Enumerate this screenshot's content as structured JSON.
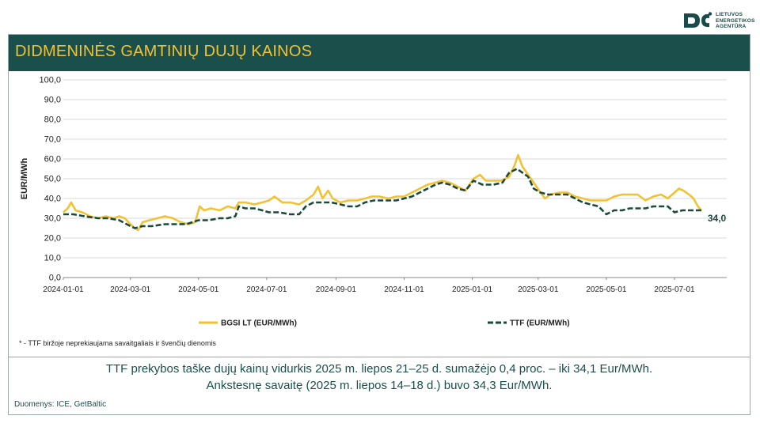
{
  "logo": {
    "line1": "LIETUVOS",
    "line2": "ENERGETIKOS",
    "line3": "AGENTŪRA"
  },
  "title": "DIDMENINĖS GAMTINIŲ DUJŲ KAINOS",
  "footnote": "* - TTF biržoje neprekiaujama savaitgaliais ir švenčių dienomis",
  "summary_line1": "TTF prekybos taške dujų kainų vidurkis 2025 m. liepos 21–25 d. sumažėjo 0,4 proc. – iki 34,1 Eur/MWh.",
  "summary_line2": "Ankstesnę savaitę (2025 m. liepos 14–18 d.) buvo 34,3 Eur/MWh.",
  "source": "Duomenys: ICE, GetBaltic",
  "colors": {
    "title_bg": "#1b4f4c",
    "title_text": "#f2c233",
    "bgsi": "#f2c233",
    "ttf": "#1b4a3c"
  },
  "chart_data": {
    "type": "line",
    "ylabel": "EUR/MWh",
    "ylim": [
      0,
      100
    ],
    "yticks": [
      "0,0",
      "10,0",
      "20,0",
      "30,0",
      "40,0",
      "50,0",
      "60,0",
      "70,0",
      "80,0",
      "90,0",
      "100,0"
    ],
    "xticks": [
      "2024-01-01",
      "2024-03-01",
      "2024-05-01",
      "2024-07-01",
      "2024-09-01",
      "2024-11-01",
      "2025-01-01",
      "2025-03-01",
      "2025-05-01",
      "2025-07-01"
    ],
    "grid": "horizontal",
    "legend_position": "bottom",
    "end_label": "34,0",
    "series": [
      {
        "name": "BGSI LT (EUR/MWh)",
        "style": "solid",
        "points": [
          [
            "2024-01-01",
            33
          ],
          [
            "2024-01-05",
            35
          ],
          [
            "2024-01-08",
            38
          ],
          [
            "2024-01-12",
            34
          ],
          [
            "2024-01-18",
            33
          ],
          [
            "2024-01-25",
            31
          ],
          [
            "2024-02-01",
            30
          ],
          [
            "2024-02-08",
            31
          ],
          [
            "2024-02-15",
            30
          ],
          [
            "2024-02-20",
            31
          ],
          [
            "2024-02-25",
            30
          ],
          [
            "2024-03-01",
            27
          ],
          [
            "2024-03-05",
            25
          ],
          [
            "2024-03-08",
            24
          ],
          [
            "2024-03-12",
            28
          ],
          [
            "2024-03-18",
            29
          ],
          [
            "2024-03-25",
            30
          ],
          [
            "2024-04-01",
            31
          ],
          [
            "2024-04-08",
            30
          ],
          [
            "2024-04-15",
            28
          ],
          [
            "2024-04-22",
            27
          ],
          [
            "2024-04-28",
            28
          ],
          [
            "2024-05-02",
            36
          ],
          [
            "2024-05-06",
            34
          ],
          [
            "2024-05-12",
            35
          ],
          [
            "2024-05-20",
            34
          ],
          [
            "2024-05-27",
            36
          ],
          [
            "2024-06-03",
            35
          ],
          [
            "2024-06-06",
            38
          ],
          [
            "2024-06-12",
            38
          ],
          [
            "2024-06-20",
            37
          ],
          [
            "2024-06-27",
            38
          ],
          [
            "2024-07-03",
            39
          ],
          [
            "2024-07-08",
            41
          ],
          [
            "2024-07-15",
            38
          ],
          [
            "2024-07-22",
            38
          ],
          [
            "2024-07-30",
            37
          ],
          [
            "2024-08-05",
            39
          ],
          [
            "2024-08-12",
            42
          ],
          [
            "2024-08-16",
            46
          ],
          [
            "2024-08-20",
            40
          ],
          [
            "2024-08-25",
            44
          ],
          [
            "2024-08-29",
            40
          ],
          [
            "2024-09-05",
            38
          ],
          [
            "2024-09-12",
            39
          ],
          [
            "2024-09-20",
            39
          ],
          [
            "2024-09-27",
            40
          ],
          [
            "2024-10-03",
            41
          ],
          [
            "2024-10-10",
            41
          ],
          [
            "2024-10-18",
            40
          ],
          [
            "2024-10-25",
            41
          ],
          [
            "2024-11-01",
            41
          ],
          [
            "2024-11-08",
            43
          ],
          [
            "2024-11-15",
            45
          ],
          [
            "2024-11-22",
            47
          ],
          [
            "2024-11-29",
            48
          ],
          [
            "2024-12-05",
            49
          ],
          [
            "2024-12-12",
            48
          ],
          [
            "2024-12-19",
            46
          ],
          [
            "2024-12-26",
            44
          ],
          [
            "2025-01-02",
            50
          ],
          [
            "2025-01-08",
            52
          ],
          [
            "2025-01-13",
            49
          ],
          [
            "2025-01-20",
            49
          ],
          [
            "2025-01-27",
            49
          ],
          [
            "2025-02-03",
            51
          ],
          [
            "2025-02-08",
            57
          ],
          [
            "2025-02-11",
            62
          ],
          [
            "2025-02-15",
            56
          ],
          [
            "2025-02-20",
            52
          ],
          [
            "2025-02-25",
            48
          ],
          [
            "2025-03-03",
            43
          ],
          [
            "2025-03-07",
            40
          ],
          [
            "2025-03-12",
            42
          ],
          [
            "2025-03-20",
            43
          ],
          [
            "2025-03-27",
            43
          ],
          [
            "2025-04-03",
            41
          ],
          [
            "2025-04-10",
            40
          ],
          [
            "2025-04-17",
            39
          ],
          [
            "2025-04-24",
            39
          ],
          [
            "2025-05-01",
            39
          ],
          [
            "2025-05-08",
            41
          ],
          [
            "2025-05-15",
            42
          ],
          [
            "2025-05-22",
            42
          ],
          [
            "2025-05-29",
            42
          ],
          [
            "2025-06-05",
            39
          ],
          [
            "2025-06-12",
            41
          ],
          [
            "2025-06-19",
            42
          ],
          [
            "2025-06-25",
            40
          ],
          [
            "2025-07-01",
            43
          ],
          [
            "2025-07-05",
            45
          ],
          [
            "2025-07-09",
            44
          ],
          [
            "2025-07-14",
            42
          ],
          [
            "2025-07-18",
            40
          ],
          [
            "2025-07-22",
            36
          ],
          [
            "2025-07-25",
            34
          ]
        ]
      },
      {
        "name": "TTF (EUR/MWh)",
        "style": "dashed",
        "points": [
          [
            "2024-01-01",
            32
          ],
          [
            "2024-01-10",
            32
          ],
          [
            "2024-01-20",
            31
          ],
          [
            "2024-02-01",
            30
          ],
          [
            "2024-02-10",
            30
          ],
          [
            "2024-02-20",
            29
          ],
          [
            "2024-03-01",
            26
          ],
          [
            "2024-03-05",
            25
          ],
          [
            "2024-03-12",
            26
          ],
          [
            "2024-03-20",
            26
          ],
          [
            "2024-04-01",
            27
          ],
          [
            "2024-04-10",
            27
          ],
          [
            "2024-04-20",
            27
          ],
          [
            "2024-05-01",
            29
          ],
          [
            "2024-05-10",
            29
          ],
          [
            "2024-05-20",
            30
          ],
          [
            "2024-05-27",
            30
          ],
          [
            "2024-06-03",
            31
          ],
          [
            "2024-06-06",
            36
          ],
          [
            "2024-06-12",
            35
          ],
          [
            "2024-06-20",
            35
          ],
          [
            "2024-06-27",
            34
          ],
          [
            "2024-07-03",
            33
          ],
          [
            "2024-07-12",
            33
          ],
          [
            "2024-07-22",
            32
          ],
          [
            "2024-07-30",
            32
          ],
          [
            "2024-08-05",
            36
          ],
          [
            "2024-08-12",
            38
          ],
          [
            "2024-08-20",
            38
          ],
          [
            "2024-08-28",
            38
          ],
          [
            "2024-09-05",
            37
          ],
          [
            "2024-09-12",
            36
          ],
          [
            "2024-09-20",
            36
          ],
          [
            "2024-09-27",
            38
          ],
          [
            "2024-10-05",
            39
          ],
          [
            "2024-10-15",
            39
          ],
          [
            "2024-10-25",
            39
          ],
          [
            "2024-11-01",
            40
          ],
          [
            "2024-11-08",
            41
          ],
          [
            "2024-11-15",
            43
          ],
          [
            "2024-11-22",
            45
          ],
          [
            "2024-11-29",
            47
          ],
          [
            "2024-12-05",
            48
          ],
          [
            "2024-12-12",
            47
          ],
          [
            "2024-12-19",
            45
          ],
          [
            "2024-12-26",
            44
          ],
          [
            "2025-01-02",
            49
          ],
          [
            "2025-01-10",
            47
          ],
          [
            "2025-01-20",
            47
          ],
          [
            "2025-01-28",
            48
          ],
          [
            "2025-02-03",
            53
          ],
          [
            "2025-02-10",
            55
          ],
          [
            "2025-02-15",
            53
          ],
          [
            "2025-02-20",
            51
          ],
          [
            "2025-02-25",
            45
          ],
          [
            "2025-03-03",
            43
          ],
          [
            "2025-03-10",
            42
          ],
          [
            "2025-03-20",
            42
          ],
          [
            "2025-03-27",
            42
          ],
          [
            "2025-04-03",
            40
          ],
          [
            "2025-04-10",
            38
          ],
          [
            "2025-04-17",
            37
          ],
          [
            "2025-04-24",
            36
          ],
          [
            "2025-05-01",
            32
          ],
          [
            "2025-05-08",
            34
          ],
          [
            "2025-05-15",
            34
          ],
          [
            "2025-05-22",
            35
          ],
          [
            "2025-05-29",
            35
          ],
          [
            "2025-06-05",
            35
          ],
          [
            "2025-06-12",
            36
          ],
          [
            "2025-06-19",
            36
          ],
          [
            "2025-06-25",
            36
          ],
          [
            "2025-07-01",
            33
          ],
          [
            "2025-07-08",
            34
          ],
          [
            "2025-07-15",
            34
          ],
          [
            "2025-07-22",
            34
          ],
          [
            "2025-07-25",
            34
          ]
        ]
      }
    ]
  }
}
